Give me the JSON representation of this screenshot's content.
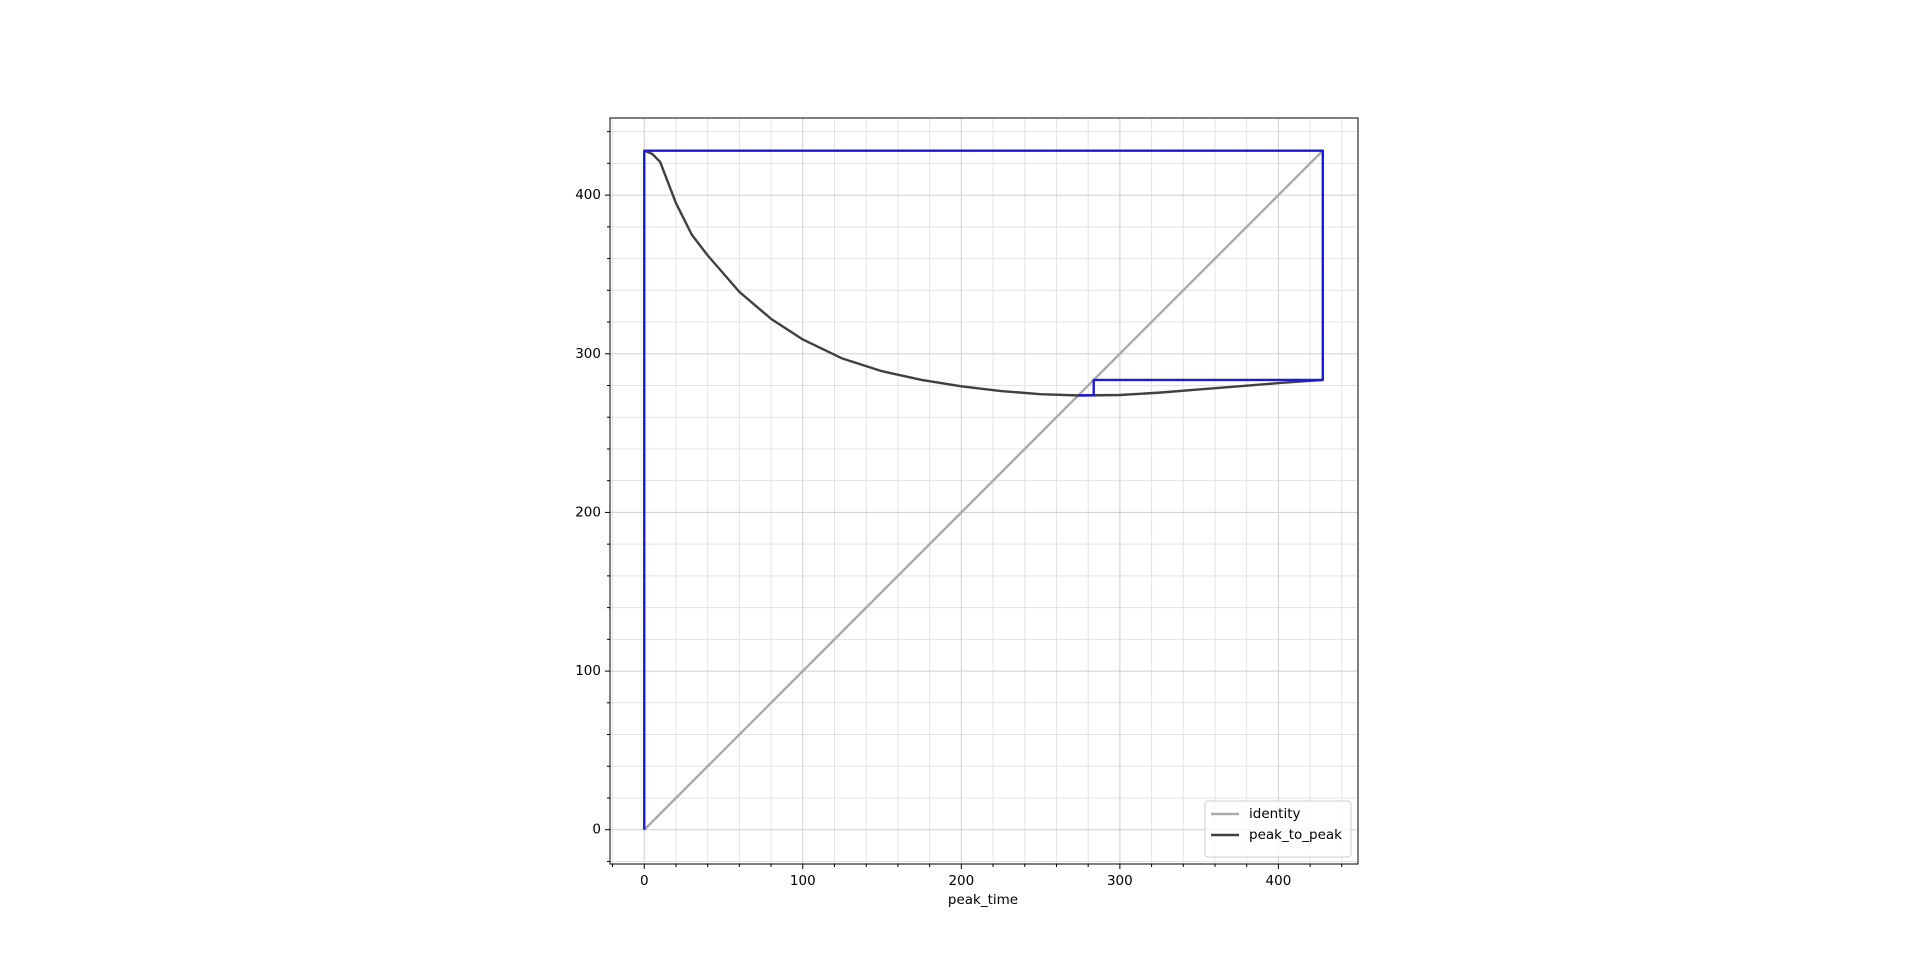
{
  "chart_data": {
    "type": "line",
    "xlabel": "peak_time",
    "xlim": [
      -21.6,
      450.2
    ],
    "ylim": [
      -21.6,
      448.6
    ],
    "xticks": [
      0,
      100,
      200,
      300,
      400
    ],
    "yticks": [
      0,
      100,
      200,
      300,
      400
    ],
    "minor_xticks": [
      -20,
      20,
      40,
      60,
      80,
      120,
      140,
      160,
      180,
      220,
      240,
      260,
      280,
      320,
      340,
      360,
      380,
      420,
      440
    ],
    "minor_yticks": [
      -20,
      20,
      40,
      60,
      80,
      120,
      140,
      160,
      180,
      220,
      240,
      260,
      280,
      320,
      340,
      360,
      380,
      420,
      440
    ],
    "grid": true,
    "legend": "lower right",
    "series": [
      {
        "name": "identity",
        "color": "#aaaaaa",
        "x": [
          0,
          428
        ],
        "values": [
          0,
          428
        ]
      },
      {
        "name": "peak_to_peak",
        "color": "#404040",
        "x": [
          0,
          5,
          10,
          20,
          30,
          40,
          60,
          80,
          100,
          125,
          150,
          175,
          200,
          225,
          250,
          275,
          300,
          325,
          350,
          375,
          400,
          428
        ],
        "values": [
          428,
          426,
          421,
          395,
          375,
          362,
          339,
          322,
          309,
          297,
          289,
          283.5,
          279.5,
          276.5,
          274.5,
          273.7,
          274,
          275.5,
          277.5,
          279.5,
          281.5,
          283.5
        ]
      },
      {
        "color": "#1a1adb",
        "x": [
          0,
          0,
          428,
          428,
          283.5,
          283.5,
          273.8
        ],
        "values": [
          0,
          428,
          428,
          283.5,
          283.5,
          273.8,
          273.8
        ]
      }
    ]
  }
}
